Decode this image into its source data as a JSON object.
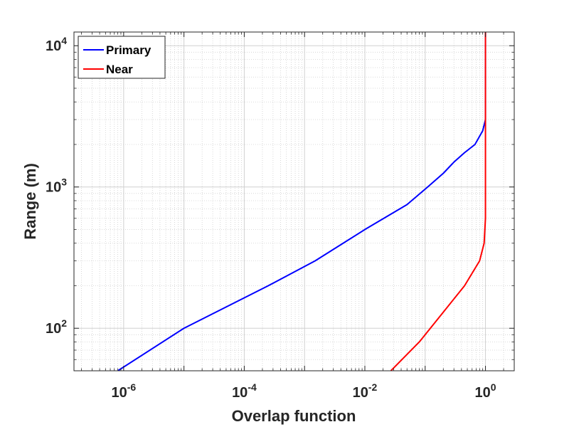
{
  "chart_data": {
    "type": "line",
    "xlabel": "Overlap function",
    "ylabel": "Range (m)",
    "x_scale": "log",
    "y_scale": "log",
    "xlim": [
      1.5e-07,
      3
    ],
    "ylim": [
      50,
      12500
    ],
    "grid": true,
    "minor_grid": true,
    "legend_position": "top-left",
    "x_ticks": [
      {
        "value": 1e-06,
        "base": "10",
        "exp": "-6"
      },
      {
        "value": 0.0001,
        "base": "10",
        "exp": "-4"
      },
      {
        "value": 0.01,
        "base": "10",
        "exp": "-2"
      },
      {
        "value": 1,
        "base": "10",
        "exp": "0"
      }
    ],
    "y_ticks": [
      {
        "value": 100,
        "base": "10",
        "exp": "2"
      },
      {
        "value": 1000,
        "base": "10",
        "exp": "3"
      },
      {
        "value": 10000,
        "base": "10",
        "exp": "4"
      }
    ],
    "series": [
      {
        "name": "Primary",
        "color": "#0000ff",
        "points": [
          {
            "x": 8e-07,
            "y": 50
          },
          {
            "x": 1e-05,
            "y": 100
          },
          {
            "x": 0.00025,
            "y": 200
          },
          {
            "x": 0.0015,
            "y": 300
          },
          {
            "x": 0.01,
            "y": 500
          },
          {
            "x": 0.05,
            "y": 750
          },
          {
            "x": 0.11,
            "y": 1000
          },
          {
            "x": 0.2,
            "y": 1250
          },
          {
            "x": 0.3,
            "y": 1500
          },
          {
            "x": 0.45,
            "y": 1750
          },
          {
            "x": 0.67,
            "y": 2000
          },
          {
            "x": 0.9,
            "y": 2500
          },
          {
            "x": 1.0,
            "y": 3000
          },
          {
            "x": 1.0,
            "y": 12500
          }
        ]
      },
      {
        "name": "Near",
        "color": "#ff0000",
        "points": [
          {
            "x": 0.027,
            "y": 50
          },
          {
            "x": 0.08,
            "y": 80
          },
          {
            "x": 0.2,
            "y": 130
          },
          {
            "x": 0.45,
            "y": 200
          },
          {
            "x": 0.8,
            "y": 300
          },
          {
            "x": 0.95,
            "y": 400
          },
          {
            "x": 1.0,
            "y": 600
          },
          {
            "x": 1.0,
            "y": 12500
          }
        ]
      }
    ]
  }
}
